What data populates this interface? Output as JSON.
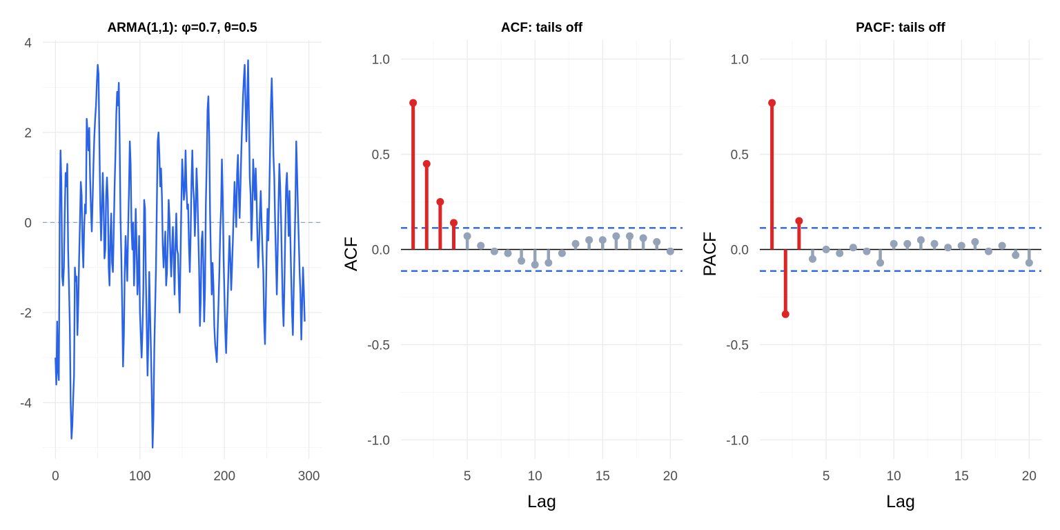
{
  "colors": {
    "series": "#2b63e6",
    "significant": "#dc2626",
    "insignificant": "#94a3b8",
    "ci": "#2b63e6",
    "zero_line": "#000000",
    "panel1_zero": "#94a3b8"
  },
  "chart_data": [
    {
      "type": "line",
      "title": "ARMA(1,1): φ=0.7, θ=0.5",
      "xlabel": "",
      "ylabel": "",
      "xlim": [
        -15,
        315
      ],
      "ylim": [
        -5.25,
        4.05
      ],
      "xticks": [
        0,
        100,
        200,
        300
      ],
      "xtick_labels": [
        "0",
        "100",
        "200",
        "300"
      ],
      "yticks": [
        -4,
        -2,
        0,
        2,
        4
      ],
      "ytick_labels": [
        "-4",
        "-2",
        "0",
        "2",
        "4"
      ],
      "grid": true,
      "reference_line": 0,
      "series": [
        {
          "values": [
            -3.0,
            -3.6,
            -2.2,
            -3.3,
            -3.5,
            0.1,
            1.6,
            0.9,
            -1.2,
            -1.4,
            -1.0,
            0.2,
            1.1,
            0.8,
            1.3,
            -0.6,
            -1.4,
            -2.3,
            -4.0,
            -4.8,
            -4.5,
            -3.9,
            -3.4,
            -1.0,
            -1.3,
            -1.2,
            -2.5,
            -1.8,
            -0.8,
            0.0,
            0.9,
            0.6,
            -0.5,
            -1.0,
            -0.1,
            0.4,
            0.2,
            2.3,
            2.0,
            1.6,
            2.1,
            1.0,
            0.3,
            -0.2,
            0.5,
            1.3,
            1.9,
            2.3,
            2.6,
            3.1,
            3.5,
            3.3,
            1.8,
            0.4,
            -0.4,
            0.3,
            1.1,
            0.4,
            -0.8,
            -0.6,
            0.6,
            1.0,
            0.5,
            -1.0,
            -1.4,
            -0.3,
            0.2,
            -0.9,
            -1.1,
            -0.2,
            0.8,
            1.5,
            2.4,
            2.9,
            2.6,
            3.1,
            1.8,
            0.1,
            -0.8,
            -1.9,
            -3.2,
            -2.5,
            -1.1,
            -0.3,
            -0.8,
            -1.3,
            -0.2,
            0.7,
            1.8,
            1.3,
            -0.1,
            -0.6,
            0.0,
            -1.4,
            -0.7,
            0.3,
            -0.5,
            -1.6,
            -1.2,
            -0.3,
            -2.0,
            -2.5,
            -3.0,
            -2.4,
            -1.5,
            0.5,
            0.3,
            -1.2,
            -2.3,
            -3.4,
            -2.6,
            -1.1,
            -2.0,
            -2.8,
            -3.8,
            -5.0,
            -4.3,
            -2.8,
            -1.9,
            -1.0,
            0.4,
            1.8,
            2.0,
            1.5,
            0.8,
            1.2,
            0.6,
            -0.5,
            -1.0,
            -0.6,
            -0.2,
            -1.4,
            -1.1,
            -0.4,
            0.5,
            0.1,
            -0.7,
            -1.2,
            -0.6,
            -0.1,
            -0.8,
            -1.6,
            -0.5,
            0.2,
            -0.6,
            -0.7,
            -1.4,
            -2.0,
            -0.8,
            0.4,
            1.4,
            1.0,
            0.5,
            0.7,
            1.6,
            0.8,
            0.3,
            0.4,
            -0.5,
            -1.1,
            -0.3,
            0.9,
            1.6,
            0.8,
            0.5,
            -0.3,
            0.3,
            1.2,
            0.7,
            -0.2,
            -1.0,
            -2.3,
            -1.7,
            -0.4,
            -0.2,
            -0.9,
            -2.2,
            -1.5,
            0.4,
            1.3,
            2.5,
            2.8,
            1.9,
            0.2,
            -0.8,
            -1.6,
            -0.9,
            -1.4,
            -2.3,
            -2.7,
            -2.9,
            -3.1,
            -2.4,
            -1.8,
            -1.1,
            -0.2,
            0.3,
            1.4,
            0.6,
            -0.8,
            -1.6,
            -2.4,
            -2.9,
            -2.2,
            -1.6,
            -0.9,
            -0.3,
            -0.8,
            -1.5,
            -1.0,
            -0.4,
            0.3,
            0.9,
            0.4,
            -0.1,
            1.1,
            1.5,
            0.7,
            0.1,
            0.8,
            1.6,
            2.2,
            2.8,
            3.2,
            3.5,
            2.6,
            1.8,
            2.7,
            3.6,
            2.4,
            1.0,
            0.6,
            -0.4,
            0.2,
            1.4,
            0.9,
            0.5,
            1.2,
            0.6,
            -0.3,
            -1.0,
            -0.5,
            0.2,
            0.7,
            0.0,
            -0.6,
            -1.1,
            -2.2,
            -2.7,
            -1.8,
            -0.6,
            0.3,
            -0.4,
            0.5,
            1.6,
            2.6,
            3.2,
            2.5,
            1.5,
            1.0,
            0.0,
            -0.8,
            -1.6,
            -0.7,
            0.4,
            1.3,
            0.8,
            0.1,
            -0.9,
            -1.8,
            -2.3,
            -1.4,
            -0.2,
            0.8,
            1.1,
            0.4,
            -0.3,
            0.7,
            -0.3,
            -1.2,
            -2.0,
            -2.5,
            -1.5,
            -0.6,
            0.4,
            1.8,
            1.1,
            0.3,
            -0.4,
            -1.1,
            -1.6,
            -2.6,
            -1.8,
            -1.0,
            -1.5,
            -2.2
          ]
        }
      ]
    },
    {
      "type": "bar",
      "title": "ACF: tails off",
      "xlabel": "Lag",
      "ylabel": "ACF",
      "xlim": [
        0.1,
        20.9
      ],
      "ylim": [
        -1.1,
        1.1
      ],
      "xticks": [
        5,
        10,
        15,
        20
      ],
      "xtick_labels": [
        "5",
        "10",
        "15",
        "20"
      ],
      "yticks": [
        -1.0,
        -0.5,
        0.0,
        0.5,
        1.0
      ],
      "ytick_labels": [
        "-1.0",
        "-0.5",
        "0.0",
        "0.5",
        "1.0"
      ],
      "ci": 0.113,
      "grid": true,
      "lags": [
        1,
        2,
        3,
        4,
        5,
        6,
        7,
        8,
        9,
        10,
        11,
        12,
        13,
        14,
        15,
        16,
        17,
        18,
        19,
        20
      ],
      "values": [
        0.77,
        0.45,
        0.25,
        0.14,
        0.07,
        0.02,
        -0.01,
        -0.02,
        -0.06,
        -0.08,
        -0.07,
        -0.02,
        0.03,
        0.05,
        0.05,
        0.07,
        0.07,
        0.06,
        0.04,
        -0.01
      ]
    },
    {
      "type": "bar",
      "title": "PACF: tails off",
      "xlabel": "Lag",
      "ylabel": "PACF",
      "xlim": [
        0.1,
        20.9
      ],
      "ylim": [
        -1.1,
        1.1
      ],
      "xticks": [
        5,
        10,
        15,
        20
      ],
      "xtick_labels": [
        "5",
        "10",
        "15",
        "20"
      ],
      "yticks": [
        -1.0,
        -0.5,
        0.0,
        0.5,
        1.0
      ],
      "ytick_labels": [
        "-1.0",
        "-0.5",
        "0.0",
        "0.5",
        "1.0"
      ],
      "ci": 0.113,
      "grid": true,
      "lags": [
        1,
        2,
        3,
        4,
        5,
        6,
        7,
        8,
        9,
        10,
        11,
        12,
        13,
        14,
        15,
        16,
        17,
        18,
        19,
        20
      ],
      "values": [
        0.77,
        -0.34,
        0.15,
        -0.05,
        0.0,
        -0.02,
        0.01,
        -0.01,
        -0.07,
        0.03,
        0.03,
        0.05,
        0.03,
        0.01,
        0.02,
        0.04,
        -0.01,
        0.02,
        -0.03,
        -0.07
      ]
    }
  ]
}
